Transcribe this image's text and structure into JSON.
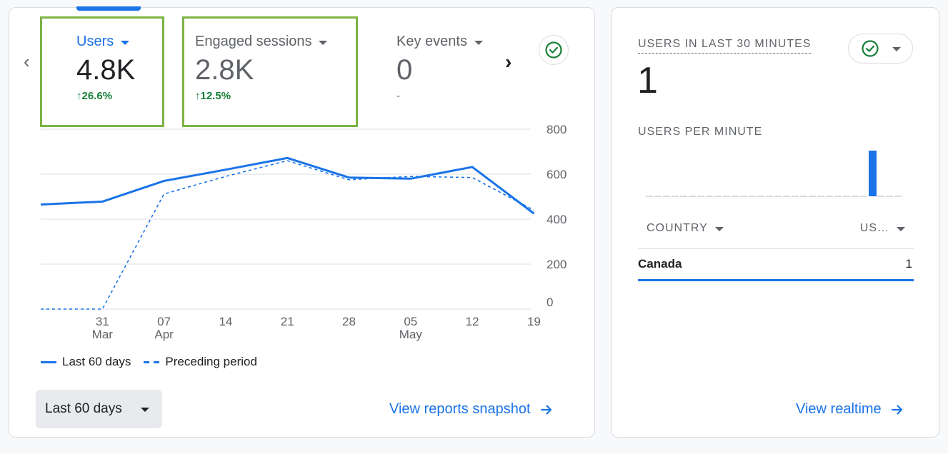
{
  "metrics": [
    {
      "label": "Users",
      "value": "4.8K",
      "change": "↑26.6%"
    },
    {
      "label": "Engaged sessions",
      "value": "2.8K",
      "change": "↑12.5%"
    },
    {
      "label": "Key events",
      "value": "0",
      "change": "-"
    }
  ],
  "colors": {
    "accent": "#1a73e8",
    "positive": "#188038",
    "highlight": "#7cb342"
  },
  "chart_data": {
    "type": "line",
    "x_ticks": [
      {
        "day": "31",
        "month": "Mar"
      },
      {
        "day": "07",
        "month": "Apr"
      },
      {
        "day": "14",
        "month": ""
      },
      {
        "day": "21",
        "month": ""
      },
      {
        "day": "28",
        "month": ""
      },
      {
        "day": "05",
        "month": "May"
      },
      {
        "day": "12",
        "month": ""
      },
      {
        "day": "19",
        "month": ""
      }
    ],
    "y_ticks": [
      "800",
      "600",
      "400",
      "200",
      "0"
    ],
    "ylim": [
      0,
      800
    ],
    "series": [
      {
        "name": "Last 60 days",
        "style": "solid",
        "points": [
          [
            0,
            465
          ],
          [
            1,
            478
          ],
          [
            2,
            570
          ],
          [
            3,
            620
          ],
          [
            4,
            672
          ],
          [
            5,
            585
          ],
          [
            6,
            580
          ],
          [
            7,
            632
          ],
          [
            8,
            425
          ]
        ]
      },
      {
        "name": "Preceding period",
        "style": "dashed",
        "points": [
          [
            0,
            0
          ],
          [
            1,
            0
          ],
          [
            2,
            512
          ],
          [
            3,
            590
          ],
          [
            4,
            660
          ],
          [
            5,
            575
          ],
          [
            6,
            590
          ],
          [
            7,
            585
          ],
          [
            8,
            440
          ]
        ]
      }
    ]
  },
  "legend": {
    "solid_label": "Last 60 days",
    "dashed_label": "Preceding period"
  },
  "date_range": {
    "label": "Last 60 days"
  },
  "snapshot_link": "View reports snapshot",
  "realtime": {
    "title": "USERS IN LAST 30 MINUTES",
    "value": "1",
    "per_minute_label": "USERS PER MINUTE",
    "per_minute_values": [
      0,
      0,
      0,
      0,
      0,
      0,
      0,
      0,
      0,
      0,
      0,
      0,
      0,
      0,
      0,
      0,
      0,
      0,
      0,
      0,
      0,
      0,
      0,
      0,
      0,
      0,
      1,
      0,
      0,
      0
    ],
    "table": {
      "col_country": "COUNTRY",
      "col_users": "US…",
      "rows": [
        {
          "country": "Canada",
          "users": "1"
        }
      ]
    },
    "link": "View realtime"
  }
}
